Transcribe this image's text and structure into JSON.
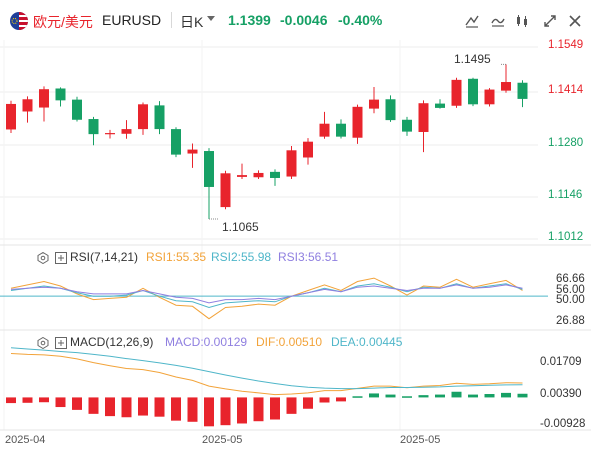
{
  "header": {
    "symbol_name": "欧元/美元",
    "symbol_code": "EURUSD",
    "period": "日K",
    "price": "1.1399",
    "change": "-0.0046",
    "change_pct": "-0.40%",
    "up_color": "#e8242c",
    "down_color": "#16a065",
    "tools": [
      "draw-line-icon",
      "compare-icon",
      "indicators-icon",
      "fullscreen-icon",
      "close-icon"
    ]
  },
  "price_panel": {
    "axis_labels": [
      "1.1549",
      "1.1414",
      "1.1280",
      "1.1146",
      "1.1012"
    ],
    "axis_values": [
      1.1549,
      1.1414,
      1.128,
      1.1146,
      1.1012
    ],
    "high_annotation": "1.1495",
    "low_annotation": "1.1065"
  },
  "rsi_panel": {
    "name": "RSI(7,14,21)",
    "rsi1": "RSI1:55.35",
    "rsi2": "RSI2:55.98",
    "rsi3": "RSI3:56.51",
    "axis_labels": [
      "66.66",
      "56.00",
      "50.00",
      "26.88"
    ],
    "colors": {
      "rsi1": "#f2a33a",
      "rsi2": "#4fb6c9",
      "rsi3": "#8f7fe0"
    }
  },
  "macd_panel": {
    "name": "MACD(12,26,9)",
    "macd": "MACD:0.00129",
    "dif": "DIF:0.00510",
    "dea": "DEA:0.00445",
    "axis_labels": [
      "0.01709",
      "0.00390",
      "-0.00928"
    ],
    "colors": {
      "macd": "#8f7fe0",
      "dif": "#f2a33a",
      "dea": "#4fb6c9"
    }
  },
  "x_axis": [
    "2025-04",
    "2025-05",
    "2025-05"
  ],
  "chart_data": {
    "type": "candlestick",
    "ylim": [
      1.1012,
      1.1549
    ],
    "candles": [
      {
        "o": 1.1314,
        "c": 1.1385,
        "h": 1.1394,
        "l": 1.1304
      },
      {
        "o": 1.1364,
        "c": 1.1398,
        "h": 1.1406,
        "l": 1.1333
      },
      {
        "o": 1.1375,
        "c": 1.1426,
        "h": 1.1434,
        "l": 1.1336
      },
      {
        "o": 1.1428,
        "c": 1.1395,
        "h": 1.1431,
        "l": 1.1378
      },
      {
        "o": 1.1397,
        "c": 1.1341,
        "h": 1.1405,
        "l": 1.1336
      },
      {
        "o": 1.1343,
        "c": 1.1301,
        "h": 1.1349,
        "l": 1.127
      },
      {
        "o": 1.1304,
        "c": 1.1304,
        "h": 1.1313,
        "l": 1.1289
      },
      {
        "o": 1.1302,
        "c": 1.1315,
        "h": 1.134,
        "l": 1.1288
      },
      {
        "o": 1.1315,
        "c": 1.1384,
        "h": 1.1389,
        "l": 1.1299
      },
      {
        "o": 1.1381,
        "c": 1.1315,
        "h": 1.1393,
        "l": 1.1301
      },
      {
        "o": 1.1315,
        "c": 1.1244,
        "h": 1.132,
        "l": 1.1237
      },
      {
        "o": 1.1247,
        "c": 1.1258,
        "h": 1.1275,
        "l": 1.1207
      },
      {
        "o": 1.1254,
        "c": 1.1154,
        "h": 1.1262,
        "l": 1.1065
      },
      {
        "o": 1.1098,
        "c": 1.1192,
        "h": 1.1199,
        "l": 1.1092
      },
      {
        "o": 1.1182,
        "c": 1.1187,
        "h": 1.1219,
        "l": 1.1176
      },
      {
        "o": 1.1181,
        "c": 1.1193,
        "h": 1.12,
        "l": 1.1176
      },
      {
        "o": 1.1196,
        "c": 1.1179,
        "h": 1.1203,
        "l": 1.1157
      },
      {
        "o": 1.1183,
        "c": 1.1256,
        "h": 1.1268,
        "l": 1.1176
      },
      {
        "o": 1.1236,
        "c": 1.128,
        "h": 1.129,
        "l": 1.1216
      },
      {
        "o": 1.1294,
        "c": 1.133,
        "h": 1.1363,
        "l": 1.1288
      },
      {
        "o": 1.133,
        "c": 1.1294,
        "h": 1.1342,
        "l": 1.1289
      },
      {
        "o": 1.1291,
        "c": 1.1377,
        "h": 1.1383,
        "l": 1.1274
      },
      {
        "o": 1.1372,
        "c": 1.1397,
        "h": 1.1432,
        "l": 1.1359
      },
      {
        "o": 1.1398,
        "c": 1.134,
        "h": 1.1409,
        "l": 1.1335
      },
      {
        "o": 1.1341,
        "c": 1.1308,
        "h": 1.1349,
        "l": 1.1296
      },
      {
        "o": 1.1307,
        "c": 1.1387,
        "h": 1.1395,
        "l": 1.1251
      },
      {
        "o": 1.1386,
        "c": 1.1374,
        "h": 1.1398,
        "l": 1.1372
      },
      {
        "o": 1.138,
        "c": 1.1452,
        "h": 1.1458,
        "l": 1.1374
      },
      {
        "o": 1.1455,
        "c": 1.1384,
        "h": 1.1458,
        "l": 1.1379
      },
      {
        "o": 1.1384,
        "c": 1.1425,
        "h": 1.1429,
        "l": 1.1378
      },
      {
        "o": 1.1422,
        "c": 1.1446,
        "h": 1.1495,
        "l": 1.1416
      },
      {
        "o": 1.1444,
        "c": 1.1399,
        "h": 1.1451,
        "l": 1.1376
      }
    ],
    "rsi1": [
      57,
      60,
      63,
      59,
      52,
      47,
      48,
      49,
      57,
      49,
      42,
      41,
      30,
      40,
      41,
      43,
      42,
      50,
      55,
      60,
      55,
      63,
      66,
      59,
      51,
      59,
      58,
      65,
      58,
      61,
      64,
      55
    ],
    "rsi2": [
      55,
      57,
      59,
      57,
      53,
      50,
      50,
      51,
      55,
      50,
      46,
      45,
      40,
      44,
      45,
      46,
      45,
      50,
      53,
      57,
      54,
      59,
      61,
      58,
      54,
      58,
      57,
      61,
      57,
      59,
      61,
      56
    ],
    "rsi3": [
      56,
      57,
      58,
      57,
      54,
      52,
      52,
      52,
      55,
      52,
      49,
      48,
      44,
      47,
      47,
      48,
      47,
      50,
      53,
      56,
      54,
      58,
      59,
      57,
      55,
      57,
      57,
      60,
      57,
      58,
      60,
      57
    ],
    "dif": [
      0.0155,
      0.0152,
      0.015,
      0.0145,
      0.0136,
      0.0123,
      0.0112,
      0.0102,
      0.0098,
      0.0088,
      0.0072,
      0.006,
      0.004,
      0.003,
      0.0022,
      0.0016,
      0.001,
      0.0012,
      0.0016,
      0.0024,
      0.0024,
      0.0032,
      0.004,
      0.004,
      0.0034,
      0.004,
      0.0042,
      0.005,
      0.0046,
      0.0048,
      0.0052,
      0.0051
    ],
    "dea": [
      0.0175,
      0.0171,
      0.0167,
      0.0162,
      0.0158,
      0.0152,
      0.0145,
      0.0137,
      0.013,
      0.0122,
      0.0113,
      0.0103,
      0.0091,
      0.0079,
      0.0068,
      0.0058,
      0.0049,
      0.0041,
      0.0036,
      0.0033,
      0.0031,
      0.0031,
      0.0033,
      0.0035,
      0.0035,
      0.0036,
      0.0037,
      0.004,
      0.0041,
      0.0043,
      0.0044,
      0.00445
    ],
    "macd_hist": [
      -0.002,
      -0.0019,
      -0.0017,
      -0.0034,
      -0.0044,
      -0.0058,
      -0.0066,
      -0.007,
      -0.0064,
      -0.0068,
      -0.0082,
      -0.0086,
      -0.0102,
      -0.0098,
      -0.0092,
      -0.0084,
      -0.0078,
      -0.0058,
      -0.004,
      -0.0018,
      -0.0014,
      0.0004,
      0.0014,
      0.001,
      0.0004,
      0.0008,
      0.001,
      0.002,
      0.001,
      0.0012,
      0.0016,
      0.00129
    ],
    "rsi_ylim": [
      20,
      75
    ],
    "macd_ylim": [
      -0.0115,
      0.0185
    ]
  }
}
